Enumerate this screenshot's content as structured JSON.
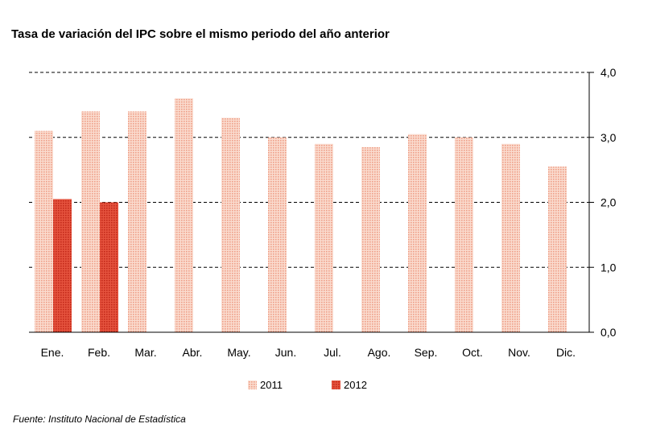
{
  "chart_data": {
    "type": "bar",
    "title": "Tasa de variación del IPC sobre el mismo periodo del año anterior",
    "categories": [
      "Ene.",
      "Feb.",
      "Mar.",
      "Abr.",
      "May.",
      "Jun.",
      "Jul.",
      "Ago.",
      "Sep.",
      "Oct.",
      "Nov.",
      "Dic."
    ],
    "series": [
      {
        "name": "2011",
        "color": "#f6c4b2",
        "values": [
          3.1,
          3.4,
          3.4,
          3.6,
          3.3,
          3.0,
          2.9,
          2.85,
          3.05,
          3.0,
          2.9,
          2.55
        ]
      },
      {
        "name": "2012",
        "color": "#dd3d2a",
        "values": [
          2.05,
          2.0,
          null,
          null,
          null,
          null,
          null,
          null,
          null,
          null,
          null,
          null
        ]
      }
    ],
    "ylim": [
      0,
      4
    ],
    "yticks": [
      "0,0",
      "1,0",
      "2,0",
      "3,0",
      "4,0"
    ],
    "yaxis_side": "right",
    "grid": "dashed horizontal",
    "legend_position": "bottom",
    "xlabel": "",
    "ylabel": ""
  },
  "footer": {
    "source": "Fuente: Instituto Nacional de Estadística"
  }
}
